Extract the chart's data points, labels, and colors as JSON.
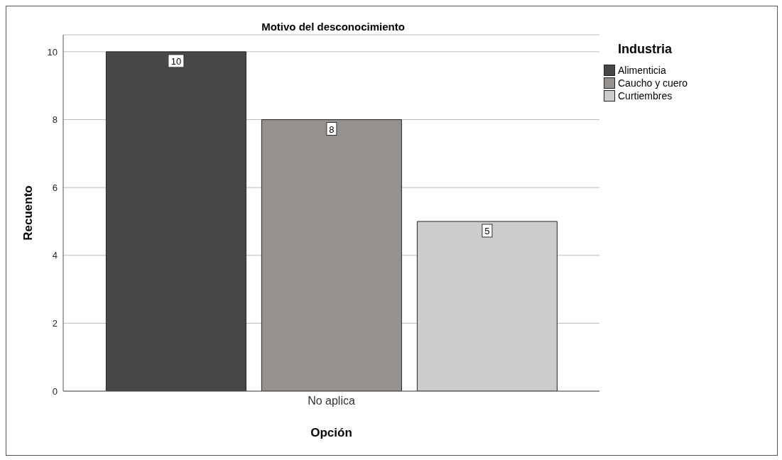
{
  "chart_data": {
    "type": "bar",
    "title": "Motivo del desconocimiento",
    "xlabel": "Opción",
    "ylabel": "Recuento",
    "legend_title": "Industria",
    "categories": [
      "No aplica"
    ],
    "series": [
      {
        "name": "Alimenticia",
        "color": "#47484a",
        "values": [
          10
        ]
      },
      {
        "name": "Caucho y cuero",
        "color": "#95918f",
        "values": [
          8
        ]
      },
      {
        "name": "Curtiembres",
        "color": "#cccccc",
        "values": [
          5
        ]
      }
    ],
    "ylim": [
      0,
      10.5
    ],
    "yticks": [
      0,
      2,
      4,
      6,
      8,
      10
    ],
    "grid": "y",
    "legend": "top right",
    "data_labels": true
  }
}
